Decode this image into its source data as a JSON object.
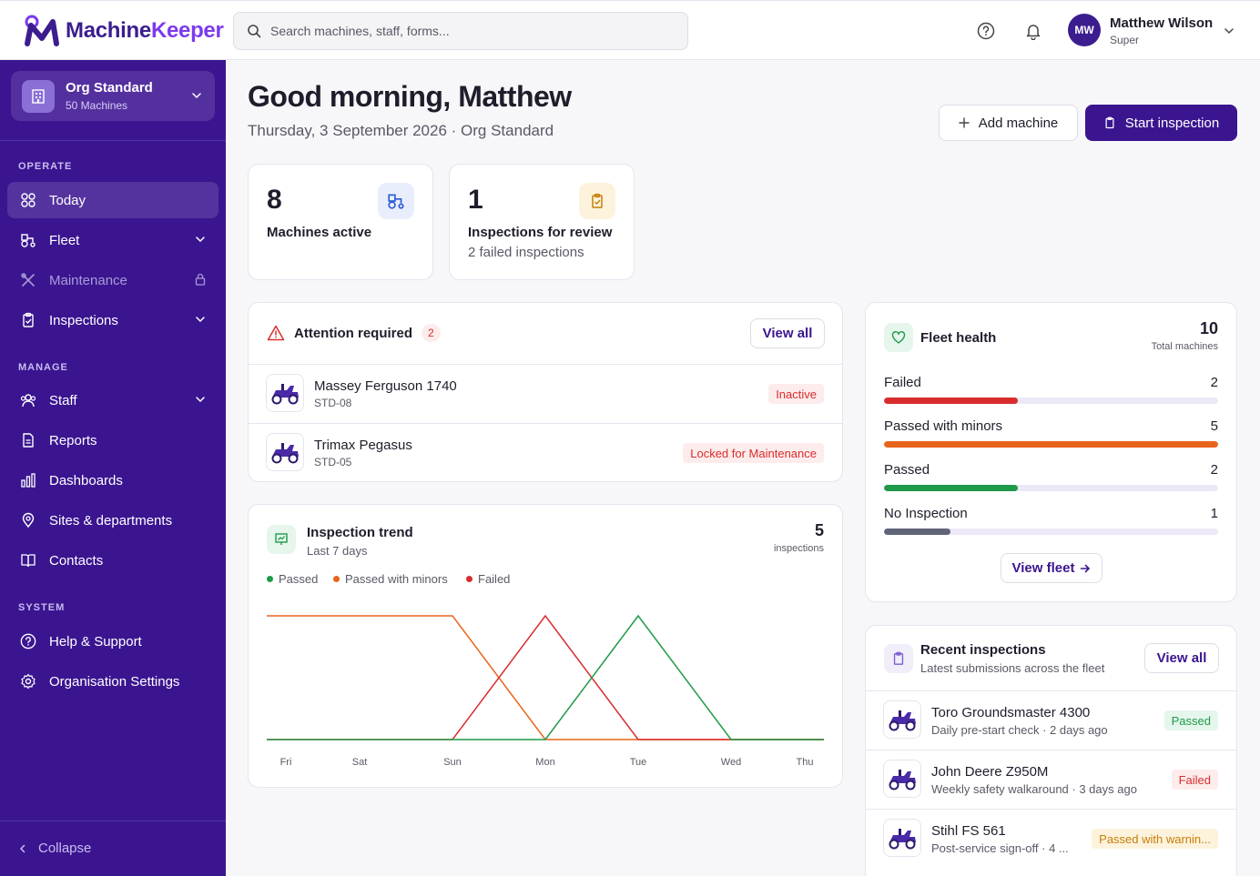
{
  "app": {
    "brand_a": "Machine",
    "brand_b": "Keeper"
  },
  "search": {
    "placeholder": "Search machines, staff, forms..."
  },
  "user": {
    "initials": "MW",
    "name": "Matthew Wilson",
    "role": "Super"
  },
  "org": {
    "name": "Org Standard",
    "machines": "50 Machines"
  },
  "sidebar": {
    "operate_label": "OPERATE",
    "manage_label": "MANAGE",
    "system_label": "SYSTEM",
    "items": [
      {
        "label": "Today"
      },
      {
        "label": "Fleet"
      },
      {
        "label": "Maintenance"
      },
      {
        "label": "Inspections"
      },
      {
        "label": "Staff"
      },
      {
        "label": "Reports"
      },
      {
        "label": "Dashboards"
      },
      {
        "label": "Sites & departments"
      },
      {
        "label": "Contacts"
      },
      {
        "label": "Help & Support"
      },
      {
        "label": "Organisation Settings"
      }
    ],
    "collapse_label": "Collapse"
  },
  "header": {
    "greeting": "Good morning, Matthew",
    "date": "Thursday, 3 September 2026 · Org Standard",
    "add_machine": "Add machine",
    "start_inspection": "Start inspection"
  },
  "stats": [
    {
      "value": "8",
      "label": "Machines active",
      "sub": ""
    },
    {
      "value": "1",
      "label": "Inspections for review",
      "sub": "2 failed inspections"
    }
  ],
  "attention": {
    "title": "Attention required",
    "count": "2",
    "view_all": "View all",
    "rows": [
      {
        "name": "Massey Ferguson 1740",
        "code": "STD-08",
        "status": "Inactive"
      },
      {
        "name": "Trimax Pegasus",
        "code": "STD-05",
        "status": "Locked for Maintenance"
      }
    ]
  },
  "trend": {
    "title": "Inspection trend",
    "subtitle": "Last 7 days",
    "total": "5",
    "total_label": "inspections"
  },
  "chart_data": {
    "type": "line",
    "categories": [
      "Fri",
      "Sat",
      "Sun",
      "Mon",
      "Tue",
      "Wed",
      "Thu"
    ],
    "series": [
      {
        "name": "Passed",
        "color": "#1e9a4a",
        "values": [
          0,
          0,
          0,
          0,
          1,
          0,
          0
        ]
      },
      {
        "name": "Passed with minors",
        "color": "#e8641c",
        "values": [
          1,
          1,
          1,
          0,
          0,
          0,
          0
        ]
      },
      {
        "name": "Failed",
        "color": "#d92d2d",
        "values": [
          0,
          0,
          0,
          1,
          0,
          0,
          0
        ]
      }
    ],
    "ylim": [
      0,
      1
    ],
    "grid": false,
    "legend": "top-left"
  },
  "fleet_health": {
    "title": "Fleet health",
    "total": "10",
    "total_label": "Total machines",
    "view_fleet": "View fleet",
    "bars": [
      {
        "label": "Failed",
        "value": "2",
        "fraction": 0.4,
        "color": "#d92d2d"
      },
      {
        "label": "Passed with minors",
        "value": "5",
        "fraction": 1.0,
        "color": "#e8641c"
      },
      {
        "label": "Passed",
        "value": "2",
        "fraction": 0.4,
        "color": "#1e9a4a"
      },
      {
        "label": "No Inspection",
        "value": "1",
        "fraction": 0.2,
        "color": "#5f6478"
      }
    ]
  },
  "recent": {
    "title": "Recent inspections",
    "subtitle": "Latest submissions across the fleet",
    "view_all": "View all",
    "rows": [
      {
        "name": "Toro Groundsmaster 4300",
        "detail": "Daily pre-start check · 2 days ago",
        "status": "Passed"
      },
      {
        "name": "John Deere Z950M",
        "detail": "Weekly safety walkaround · 3 days ago",
        "status": "Failed"
      },
      {
        "name": "Stihl FS 561",
        "detail": "Post-service sign-off · 4 ...",
        "status": "Passed with warnin..."
      }
    ]
  }
}
